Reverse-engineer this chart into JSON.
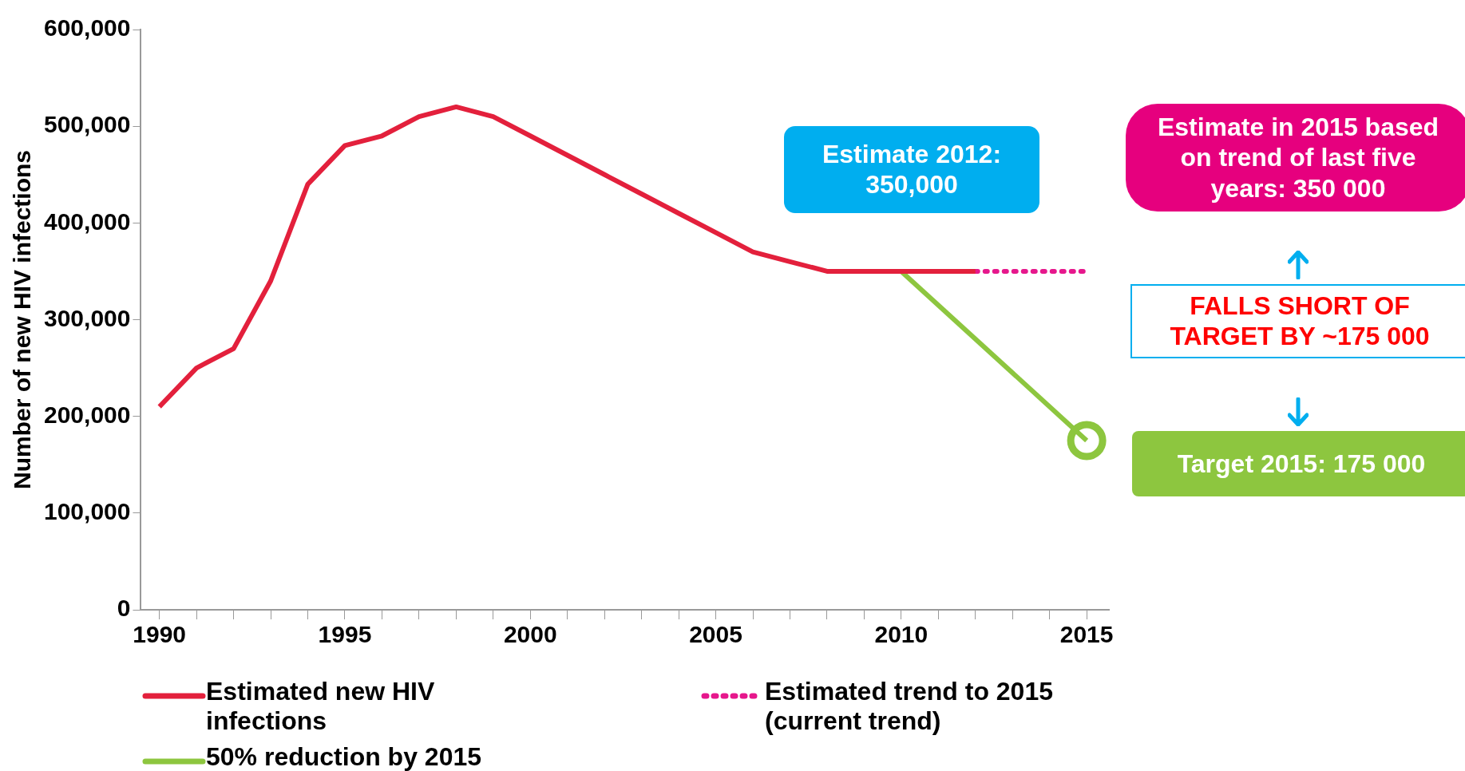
{
  "chart_data": {
    "type": "line",
    "ylabel": "Number of new HIV infections",
    "xlim": [
      1989.5,
      2015.6
    ],
    "ylim": [
      0,
      600000
    ],
    "yticks": [
      {
        "value": 0,
        "label": "0"
      },
      {
        "value": 100000,
        "label": "100,000"
      },
      {
        "value": 200000,
        "label": "200,000"
      },
      {
        "value": 300000,
        "label": "300,000"
      },
      {
        "value": 400000,
        "label": "400,000"
      },
      {
        "value": 500000,
        "label": "500,000"
      },
      {
        "value": 600000,
        "label": "600,000"
      }
    ],
    "xticks": [
      1990,
      {
        "value": 1991,
        "label": null
      },
      {
        "value": 1992,
        "label": null
      },
      {
        "value": 1993,
        "label": null
      },
      {
        "value": 1994,
        "label": null
      },
      1995,
      {
        "value": 1996,
        "label": null
      },
      {
        "value": 1997,
        "label": null
      },
      {
        "value": 1998,
        "label": null
      },
      {
        "value": 1999,
        "label": null
      },
      2000,
      {
        "value": 2001,
        "label": null
      },
      {
        "value": 2002,
        "label": null
      },
      {
        "value": 2003,
        "label": null
      },
      {
        "value": 2004,
        "label": null
      },
      2005,
      {
        "value": 2006,
        "label": null
      },
      {
        "value": 2007,
        "label": null
      },
      {
        "value": 2008,
        "label": null
      },
      {
        "value": 2009,
        "label": null
      },
      2010,
      {
        "value": 2011,
        "label": null
      },
      {
        "value": 2012,
        "label": null
      },
      {
        "value": 2013,
        "label": null
      },
      {
        "value": 2014,
        "label": null
      },
      2015
    ],
    "grid": false,
    "legend": "bottom",
    "marker": "none",
    "series": [
      {
        "name": "Estimated new HIV infections",
        "color": "#e3203c",
        "line_style": "solid",
        "x": [
          1990,
          1991,
          1992,
          1993,
          1994,
          1995,
          1996,
          1997,
          1998,
          1999,
          2000,
          2001,
          2002,
          2003,
          2004,
          2005,
          2006,
          2007,
          2008,
          2009,
          2010,
          2011,
          2012
        ],
        "values": [
          210000,
          250000,
          270000,
          340000,
          440000,
          480000,
          490000,
          510000,
          520000,
          510000,
          490000,
          470000,
          450000,
          430000,
          410000,
          390000,
          370000,
          360000,
          350000,
          350000,
          350000,
          350000,
          350000
        ]
      },
      {
        "name": "Estimated trend to 2015 (current trend)",
        "color": "#e6178c",
        "line_style": "dotted",
        "x": [
          2012,
          2015
        ],
        "values": [
          350000,
          350000
        ]
      },
      {
        "name": "50% reduction by 2015",
        "color": "#8dc63f",
        "line_style": "solid",
        "x": [
          2010,
          2015
        ],
        "values": [
          350000,
          175000
        ]
      },
      {
        "type": "scatter",
        "color": "#8dc63f",
        "marker": "circle",
        "x": [
          2015
        ],
        "values": [
          175000
        ]
      }
    ],
    "annotations": [
      "Estimate 2012: 350,000",
      "Estimate in 2015 based on trend of last five years: 350 000",
      "FALLS SHORT OF TARGET BY ~175 000",
      "Target  2015: 175 000"
    ]
  }
}
